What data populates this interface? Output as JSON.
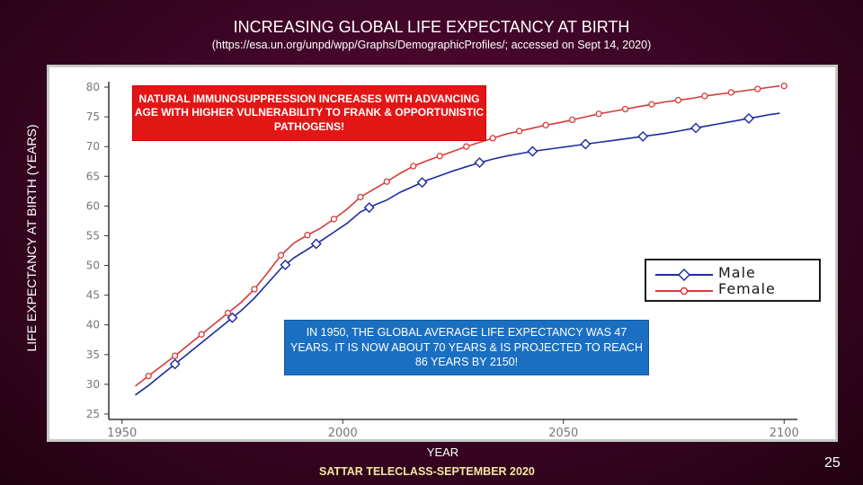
{
  "slide": {
    "title": "INCREASING GLOBAL LIFE EXPECTANCY AT BIRTH",
    "subtitle": "(https://esa.un.org/unpd/wpp/Graphs/DemographicProfiles/; accessed on Sept 14, 2020)",
    "footer": "SATTAR TELECLASS-SEPTEMBER 2020",
    "slide_number": "25",
    "note_red": "NATURAL IMMUNOSUPPRESSION INCREASES WITH ADVANCING AGE WITH HIGHER VULNERABILITY TO FRANK & OPPORTUNISTIC PATHOGENS!",
    "note_blue": "IN 1950, THE GLOBAL AVERAGE LIFE EXPECTANCY WAS 47 YEARS. IT IS NOW ABOUT 70 YEARS & IS PROJECTED TO REACH 86 YEARS BY 2150!",
    "colors": {
      "male": "#1c2b9e",
      "female": "#d83a3a",
      "red_box": "#e31616",
      "blue_box": "#1b6fc2"
    }
  },
  "chart_data": {
    "type": "line",
    "xlabel": "YEAR",
    "ylabel": "LIFE EXPECTANCY AT BIRTH (YEARS)",
    "xlim": [
      1947,
      2103
    ],
    "ylim": [
      25,
      80
    ],
    "x_ticks": [
      1950,
      2000,
      2050,
      2100
    ],
    "y_ticks": [
      25,
      30,
      35,
      40,
      45,
      50,
      55,
      60,
      65,
      70,
      75,
      80
    ],
    "grid": false,
    "legend_position": "right",
    "series": [
      {
        "name": "Male",
        "x": [
          1953,
          1956,
          1959,
          1962,
          1965,
          1968,
          1971,
          1974,
          1977,
          1980,
          1983,
          1986,
          1989,
          1992,
          1995,
          1998,
          2001,
          2004,
          2007,
          2010,
          2013,
          2016,
          2019,
          2022,
          2025,
          2028,
          2031,
          2034,
          2037,
          2040,
          2043,
          2046,
          2049,
          2052,
          2055,
          2058,
          2061,
          2064,
          2067,
          2070,
          2073,
          2076,
          2079,
          2082,
          2085,
          2088,
          2091,
          2094,
          2097,
          2099
        ],
        "values": [
          28.2,
          29.8,
          31.6,
          33.4,
          35.2,
          37.0,
          38.8,
          40.6,
          42.4,
          44.5,
          47.0,
          49.5,
          51.3,
          52.7,
          54.1,
          55.6,
          57.1,
          59.0,
          60.1,
          61.0,
          62.3,
          63.3,
          64.3,
          65.1,
          65.9,
          66.6,
          67.3,
          67.9,
          68.4,
          68.8,
          69.2,
          69.5,
          69.8,
          70.1,
          70.4,
          70.7,
          71.0,
          71.3,
          71.6,
          71.9,
          72.2,
          72.6,
          73.0,
          73.4,
          73.8,
          74.2,
          74.6,
          75.0,
          75.4,
          75.6
        ],
        "markers_x": [
          1962,
          1975,
          1987,
          1994,
          2006,
          2018,
          2031,
          2043,
          2055,
          2068,
          2080,
          2092
        ]
      },
      {
        "name": "Female",
        "x": [
          1953,
          1956,
          1959,
          1962,
          1965,
          1968,
          1971,
          1974,
          1977,
          1980,
          1983,
          1986,
          1989,
          1992,
          1995,
          1998,
          2001,
          2004,
          2007,
          2010,
          2013,
          2016,
          2019,
          2022,
          2025,
          2028,
          2031,
          2034,
          2037,
          2040,
          2043,
          2046,
          2049,
          2052,
          2055,
          2058,
          2061,
          2064,
          2067,
          2070,
          2073,
          2076,
          2079,
          2082,
          2085,
          2088,
          2091,
          2094,
          2097,
          2099
        ],
        "values": [
          29.7,
          31.4,
          33.1,
          34.8,
          36.6,
          38.4,
          40.2,
          42.0,
          43.8,
          46.0,
          48.8,
          51.7,
          53.8,
          55.1,
          56.3,
          57.8,
          59.5,
          61.5,
          62.8,
          64.1,
          65.5,
          66.7,
          67.6,
          68.4,
          69.2,
          70.0,
          70.7,
          71.4,
          72.1,
          72.6,
          73.1,
          73.6,
          74.0,
          74.5,
          75.0,
          75.5,
          75.9,
          76.3,
          76.7,
          77.1,
          77.5,
          77.8,
          78.1,
          78.5,
          78.8,
          79.1,
          79.4,
          79.7,
          80.0,
          80.2
        ],
        "markers_x": [
          1956,
          1962,
          1968,
          1974,
          1980,
          1986,
          1992,
          1998,
          2004,
          2010,
          2016,
          2022,
          2028,
          2034,
          2040,
          2046,
          2052,
          2058,
          2064,
          2070,
          2076,
          2082,
          2088,
          2094,
          2100
        ]
      }
    ]
  }
}
